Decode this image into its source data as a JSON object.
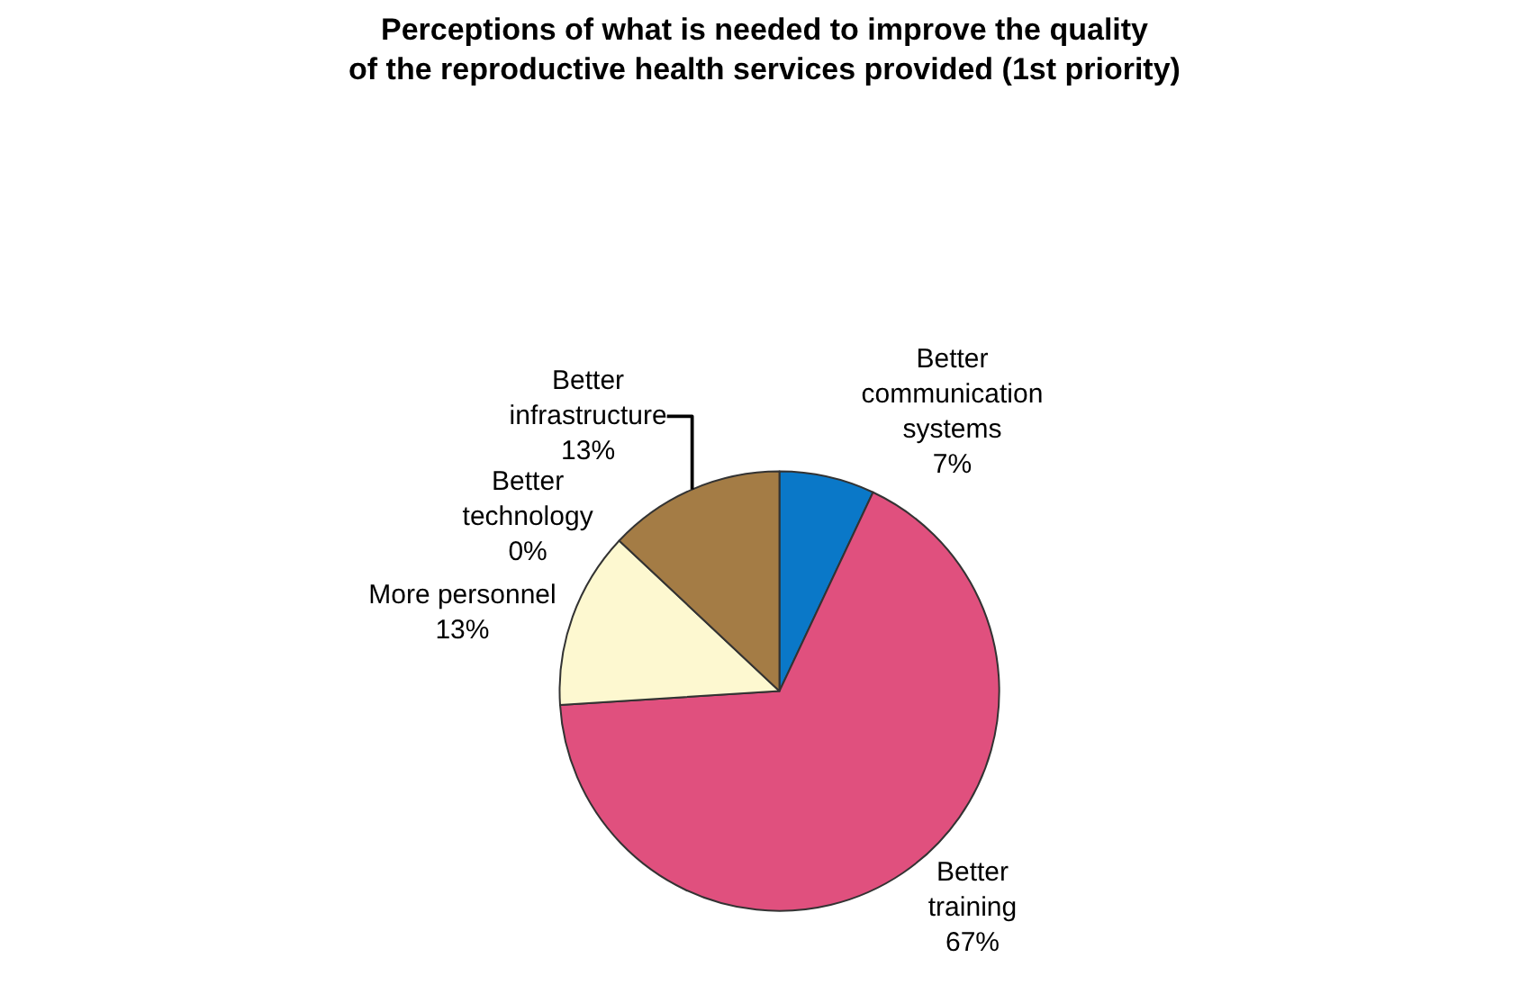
{
  "chart_data": {
    "type": "pie",
    "title": "Perceptions of what is needed to improve the quality\nof the reproductive health services provided (1st priority)",
    "categories": [
      "Better communication systems",
      "Better training",
      "More personnel",
      "Better technology",
      "Better infrastructure"
    ],
    "values": [
      7,
      67,
      13,
      0,
      13
    ],
    "value_labels": [
      "7%",
      "67%",
      "13%",
      "0%",
      "13%"
    ],
    "colors": [
      "#0a78c8",
      "#e0507e",
      "#fdf8d0",
      "#6a5a9a",
      "#a47c45"
    ]
  }
}
